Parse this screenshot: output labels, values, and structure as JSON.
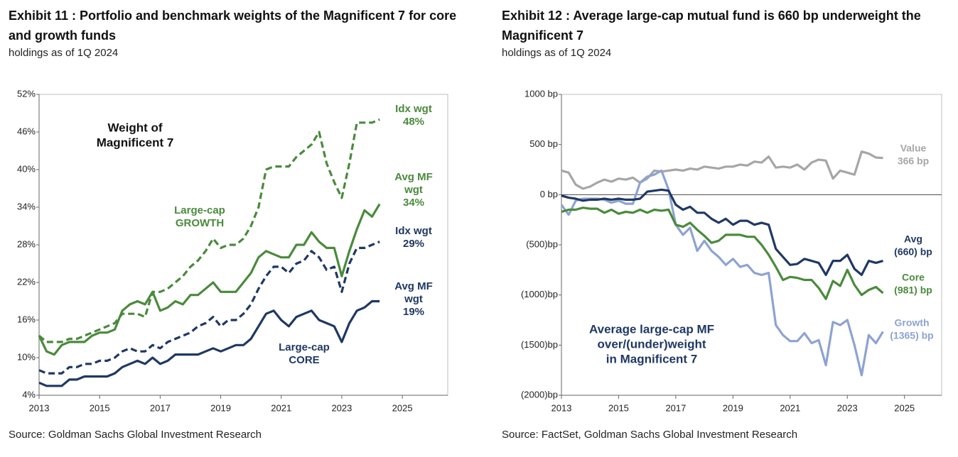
{
  "chart_data": [
    {
      "type": "line",
      "title": "Exhibit 11 : Portfolio and benchmark weights of the Magnificent 7 for core and growth funds",
      "subtitle": "holdings as of 1Q 2024",
      "source": "Source: Goldman Sachs Global Investment Research",
      "x": [
        2013,
        2013.25,
        2013.5,
        2013.75,
        2014,
        2014.25,
        2014.5,
        2014.75,
        2015,
        2015.25,
        2015.5,
        2015.75,
        2016,
        2016.25,
        2016.5,
        2016.75,
        2017,
        2017.25,
        2017.5,
        2017.75,
        2018,
        2018.25,
        2018.5,
        2018.75,
        2019,
        2019.25,
        2019.5,
        2019.75,
        2020,
        2020.25,
        2020.5,
        2020.75,
        2021,
        2021.25,
        2021.5,
        2021.75,
        2022,
        2022.25,
        2022.5,
        2022.75,
        2023,
        2023.25,
        2023.5,
        2023.75,
        2024,
        2024.25
      ],
      "xlim": [
        2013,
        2026.5
      ],
      "xticks": [
        2013,
        2015,
        2017,
        2019,
        2021,
        2023,
        2025
      ],
      "ylim": [
        4,
        52
      ],
      "yticks": [
        {
          "value": 4,
          "label": "4%"
        },
        {
          "value": 10,
          "label": "10%"
        },
        {
          "value": 16,
          "label": "16%"
        },
        {
          "value": 22,
          "label": "22%"
        },
        {
          "value": 28,
          "label": "28%"
        },
        {
          "value": 34,
          "label": "34%"
        },
        {
          "value": 40,
          "label": "40%"
        },
        {
          "value": 46,
          "label": "46%"
        },
        {
          "value": 52,
          "label": "52%"
        }
      ],
      "series": [
        {
          "color": "#4a8a3c",
          "dashed": true,
          "values": [
            13.5,
            12.5,
            12.5,
            12.5,
            13,
            13,
            13.5,
            14,
            14.5,
            15,
            15.5,
            17,
            17,
            17,
            16.5,
            20.5,
            20.5,
            21,
            22,
            23,
            24.5,
            25.5,
            27,
            29,
            27.5,
            28,
            28,
            29,
            31,
            34,
            40,
            40.5,
            40.5,
            40.5,
            42,
            43,
            44,
            46,
            41,
            38,
            35.5,
            41,
            47.5,
            47.5,
            47.5,
            48
          ]
        },
        {
          "color": "#4a8a3c",
          "dashed": false,
          "values": [
            13.5,
            11,
            10.5,
            12,
            12.5,
            12.5,
            12.5,
            13.5,
            14,
            14,
            14.5,
            17.5,
            18.5,
            19,
            18.5,
            20.5,
            17.5,
            18,
            19,
            18.5,
            20,
            20,
            21,
            22,
            20.5,
            20.5,
            20.5,
            22,
            23.5,
            26,
            27,
            26.5,
            26,
            26,
            28,
            28,
            30,
            28.5,
            27.5,
            27.5,
            23,
            27,
            30.5,
            33.5,
            32.5,
            34.5
          ]
        },
        {
          "color": "#1f3864",
          "dashed": true,
          "values": [
            8,
            7.5,
            7.5,
            7.5,
            8.5,
            8.5,
            9,
            9,
            9.5,
            9.5,
            10,
            11,
            11.5,
            11,
            11,
            12,
            11.5,
            12.5,
            13,
            13.5,
            14,
            15,
            15.5,
            16.5,
            15,
            16,
            16,
            17,
            18.5,
            21,
            23,
            24.5,
            24.5,
            23.5,
            25,
            25.5,
            27,
            26,
            24,
            24.5,
            20.5,
            25,
            27.5,
            27.5,
            28,
            28.5
          ]
        },
        {
          "color": "#1f3864",
          "dashed": false,
          "values": [
            6,
            5.5,
            5.5,
            5.5,
            6.5,
            6.5,
            7,
            7,
            7,
            7,
            7.5,
            8.5,
            9,
            9.5,
            9,
            10,
            9,
            9.5,
            10.5,
            10.5,
            10.5,
            10.5,
            11,
            11.5,
            11,
            11.5,
            12,
            12,
            13,
            15,
            17,
            17.5,
            16,
            15,
            16.5,
            17,
            17.5,
            16,
            15.5,
            15,
            12.5,
            15.5,
            17.5,
            18,
            19,
            19
          ]
        }
      ],
      "annotations": [
        {
          "text": [
            "Weight of",
            "Magnificent 7"
          ],
          "color": "#111111"
        },
        {
          "text": [
            "Large-cap",
            "GROWTH"
          ],
          "color": "#4a8a3c"
        },
        {
          "text": [
            "Idx wgt",
            "48%"
          ],
          "color": "#4a8a3c"
        },
        {
          "text": [
            "Avg MF",
            "wgt",
            "34%"
          ],
          "color": "#4a8a3c"
        },
        {
          "text": [
            "Idx wgt",
            "29%"
          ],
          "color": "#1f3864"
        },
        {
          "text": [
            "Avg MF",
            "wgt",
            "19%"
          ],
          "color": "#1f3864"
        },
        {
          "text": [
            "Large-cap",
            "CORE"
          ],
          "color": "#1f3864"
        }
      ],
      "zero_line": false
    },
    {
      "type": "line",
      "title": "Exhibit 12 : Average large-cap mutual fund is 660 bp underweight the Magnificent 7",
      "subtitle": "holdings as of 1Q 2024",
      "source": "Source: FactSet, Goldman Sachs Global Investment Research",
      "x": [
        2013,
        2013.25,
        2013.5,
        2013.75,
        2014,
        2014.25,
        2014.5,
        2014.75,
        2015,
        2015.25,
        2015.5,
        2015.75,
        2016,
        2016.25,
        2016.5,
        2016.75,
        2017,
        2017.25,
        2017.5,
        2017.75,
        2018,
        2018.25,
        2018.5,
        2018.75,
        2019,
        2019.25,
        2019.5,
        2019.75,
        2020,
        2020.25,
        2020.5,
        2020.75,
        2021,
        2021.25,
        2021.5,
        2021.75,
        2022,
        2022.25,
        2022.5,
        2022.75,
        2023,
        2023.25,
        2023.5,
        2023.75,
        2024,
        2024.25
      ],
      "xlim": [
        2013,
        2026.3
      ],
      "xticks": [
        2013,
        2015,
        2017,
        2019,
        2021,
        2023,
        2025
      ],
      "ylim": [
        -2000,
        1000
      ],
      "yticks": [
        {
          "value": -2000,
          "label": "(2000)bp"
        },
        {
          "value": -1500,
          "label": "(1500)bp"
        },
        {
          "value": -1000,
          "label": "(1000)bp"
        },
        {
          "value": -500,
          "label": "(500)bp"
        },
        {
          "value": 0,
          "label": "0 bp"
        },
        {
          "value": 500,
          "label": "500 bp"
        },
        {
          "value": 1000,
          "label": "1000 bp"
        }
      ],
      "series": [
        {
          "color": "#a6a6a6",
          "dashed": false,
          "values": [
            240,
            220,
            100,
            60,
            80,
            120,
            150,
            130,
            160,
            150,
            170,
            120,
            160,
            240,
            230,
            240,
            250,
            240,
            260,
            250,
            280,
            270,
            260,
            280,
            280,
            300,
            290,
            330,
            320,
            380,
            270,
            280,
            270,
            300,
            250,
            320,
            350,
            340,
            160,
            240,
            220,
            200,
            430,
            410,
            370,
            366
          ]
        },
        {
          "color": "#8ea3d1",
          "dashed": false,
          "values": [
            -100,
            -200,
            -60,
            -40,
            -40,
            -40,
            -50,
            -80,
            -60,
            -90,
            -90,
            120,
            180,
            200,
            240,
            50,
            -300,
            -400,
            -330,
            -560,
            -460,
            -560,
            -620,
            -700,
            -640,
            -720,
            -700,
            -780,
            -800,
            -780,
            -1300,
            -1400,
            -1460,
            -1460,
            -1380,
            -1480,
            -1450,
            -1700,
            -1270,
            -1300,
            -1250,
            -1500,
            -1800,
            -1400,
            -1480,
            -1365
          ]
        },
        {
          "color": "#4a8a3c",
          "dashed": false,
          "values": [
            -170,
            -150,
            -150,
            -130,
            -140,
            -140,
            -180,
            -150,
            -190,
            -170,
            -180,
            -150,
            -180,
            -150,
            -160,
            -150,
            -300,
            -320,
            -280,
            -350,
            -410,
            -480,
            -460,
            -400,
            -400,
            -400,
            -420,
            -420,
            -500,
            -600,
            -720,
            -850,
            -820,
            -830,
            -850,
            -850,
            -930,
            -1040,
            -860,
            -910,
            -750,
            -900,
            -1000,
            -950,
            -920,
            -981
          ]
        },
        {
          "color": "#1f3864",
          "dashed": false,
          "values": [
            -10,
            -30,
            -40,
            -60,
            -50,
            -50,
            -40,
            -50,
            -40,
            -50,
            -50,
            -40,
            30,
            40,
            50,
            40,
            -100,
            -150,
            -120,
            -180,
            -180,
            -240,
            -280,
            -240,
            -300,
            -260,
            -260,
            -300,
            -280,
            -300,
            -540,
            -620,
            -700,
            -690,
            -640,
            -660,
            -680,
            -800,
            -660,
            -660,
            -600,
            -740,
            -800,
            -660,
            -680,
            -660
          ]
        }
      ],
      "annotations": [
        {
          "text": [
            "Value",
            "366 bp"
          ],
          "color": "#a6a6a6"
        },
        {
          "text": [
            "Avg",
            "(660)  bp"
          ],
          "color": "#1f3864"
        },
        {
          "text": [
            "Core",
            "(981) bp"
          ],
          "color": "#4a8a3c"
        },
        {
          "text": [
            "Growth",
            "(1365) bp"
          ],
          "color": "#8ea3d1"
        },
        {
          "text": [
            "Average large-cap MF",
            "over/(under)weight",
            "in Magnificent 7"
          ],
          "color": "#1f3864"
        }
      ],
      "zero_line": true
    }
  ]
}
